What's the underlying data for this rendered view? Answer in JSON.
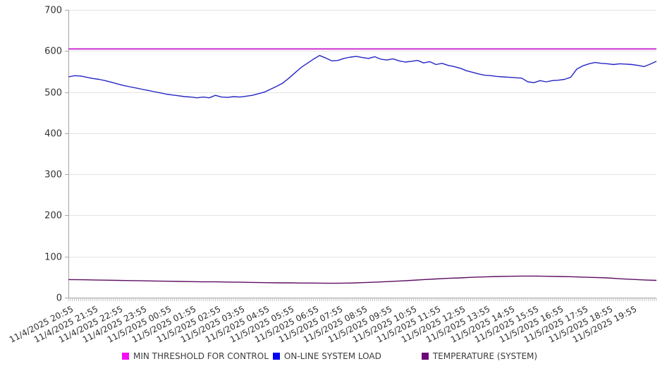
{
  "chart_data": {
    "type": "line",
    "title": "",
    "xlabel": "",
    "ylabel": "",
    "ylim": [
      0,
      700
    ],
    "y_ticks": [
      0,
      100,
      200,
      300,
      400,
      500,
      600,
      700
    ],
    "hours_span": 24,
    "grid": "horizontal",
    "legend_position": "bottom",
    "colors": {
      "grid": "#e4e4e4",
      "axis": "#a6a6a6",
      "tick": "#c6c6c6",
      "label": "#333333"
    },
    "x_labels": [
      "11/4/2025 20:55",
      "11/4/2025 21:55",
      "11/4/2025 22:55",
      "11/4/2025 23:55",
      "11/5/2025 00:55",
      "11/5/2025 01:55",
      "11/5/2025 02:55",
      "11/5/2025 03:55",
      "11/5/2025 04:55",
      "11/5/2025 05:55",
      "11/5/2025 06:55",
      "11/5/2025 07:55",
      "11/5/2025 08:55",
      "11/5/2025 09:55",
      "11/5/2025 10:55",
      "11/5/2025 11:55",
      "11/5/2025 12:55",
      "11/5/2025 13:55",
      "11/5/2025 14:55",
      "11/5/2025 15:55",
      "11/5/2025 16:55",
      "11/5/2025 17:55",
      "11/5/2025 18:55",
      "11/5/2025 19:55"
    ],
    "series": [
      {
        "name": "MIN THRESHOLD FOR CONTROL",
        "kind": "threshold",
        "color": "#cb30d2",
        "swatch": "#f50df5",
        "value": 605
      },
      {
        "name": "ON-LINE SYSTEM LOAD",
        "kind": "line",
        "color": "#2525c6",
        "swatch": "#0202f0",
        "interval_hours": 0.25,
        "values": [
          537,
          540,
          539,
          536,
          533,
          531,
          528,
          524,
          520,
          516,
          513,
          510,
          507,
          504,
          501,
          498,
          495,
          493,
          491,
          489,
          488,
          486,
          488,
          486,
          492,
          488,
          487,
          489,
          488,
          490,
          492,
          496,
          500,
          507,
          514,
          522,
          534,
          547,
          560,
          570,
          580,
          589,
          583,
          576,
          577,
          582,
          585,
          587,
          584,
          582,
          586,
          580,
          578,
          581,
          576,
          573,
          575,
          577,
          571,
          574,
          567,
          570,
          565,
          562,
          558,
          552,
          548,
          544,
          541,
          540,
          538,
          537,
          536,
          535,
          534,
          525,
          523,
          528,
          525,
          528,
          529,
          531,
          536,
          556,
          564,
          569,
          572,
          570,
          569,
          567,
          569,
          568,
          567,
          565,
          562,
          568,
          575
        ]
      },
      {
        "name": "TEMPERATURE (SYSTEM)",
        "kind": "line",
        "color": "#5e0d62",
        "swatch": "#6d0778",
        "interval_hours": 0.5,
        "values": [
          44,
          43.5,
          43,
          42.5,
          42,
          41.5,
          41,
          40.5,
          40,
          39.5,
          39,
          38.5,
          38.5,
          38,
          37.5,
          37,
          36.5,
          36,
          36,
          35.5,
          35.5,
          35,
          35,
          35.5,
          36.5,
          37.5,
          39,
          40.5,
          42,
          44,
          45.5,
          47,
          48,
          49.5,
          50.5,
          51.5,
          52,
          52.5,
          52.5,
          52,
          51.5,
          51,
          50,
          49,
          48,
          46,
          44.5,
          43,
          42
        ]
      }
    ]
  }
}
